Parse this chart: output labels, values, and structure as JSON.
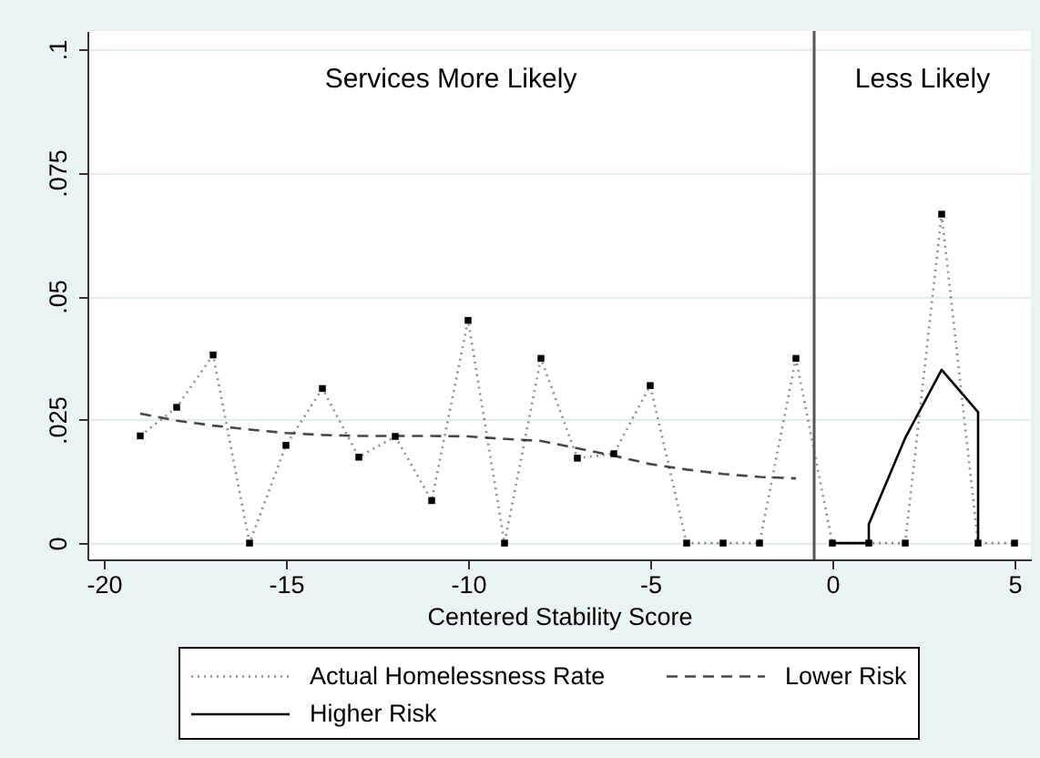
{
  "chart_data": {
    "type": "line",
    "xlabel": "Centered Stability Score",
    "annotations": [
      "Services More Likely",
      "Less Likely"
    ],
    "xlim": [
      -20.45,
      5.45
    ],
    "ylim": [
      -0.0033,
      0.1037
    ],
    "xticks": [
      -20,
      -15,
      -10,
      -5,
      0,
      5
    ],
    "yticks": [
      0,
      {
        "value": 0.025,
        "label": ".025"
      },
      {
        "value": 0.05,
        "label": ".05"
      },
      {
        "value": 0.075,
        "label": ".075"
      },
      {
        "value": 0.1,
        "label": ".1"
      }
    ],
    "grid": "y",
    "legend": "bottom",
    "ref_lines": [
      {
        "axis": "x",
        "value": -0.5,
        "color": "#555555"
      }
    ],
    "series": [
      {
        "name": "Actual Homelessness Rate",
        "color": "#000000",
        "line_style": "dotted",
        "marker": "square",
        "x": [
          -19,
          -18,
          -17,
          -16,
          -15,
          -14,
          -13,
          -12,
          -11,
          -10,
          -9,
          -8,
          -7,
          -6,
          -5,
          -4,
          -3,
          -2,
          -1,
          0,
          1,
          2,
          3,
          4,
          5
        ],
        "values": [
          0.0217,
          0.0275,
          0.0381,
          0,
          0.0198,
          0.0313,
          0.0174,
          0.0216,
          0.0086,
          0.0451,
          0,
          0.0374,
          0.0172,
          0.0181,
          0.0319,
          0,
          0,
          0,
          0.0374,
          0,
          0,
          0,
          0.0666,
          0,
          0
        ]
      },
      {
        "name": "Lower Risk",
        "color": "#000000",
        "line_style": "dashed",
        "x": [
          -19,
          -18,
          -17,
          -16,
          -15,
          -14,
          -13,
          -12,
          -11,
          -10,
          -9,
          -8,
          -7,
          -6,
          -5,
          -4,
          -3,
          -2,
          -1
        ],
        "values": [
          0.0262,
          0.0248,
          0.0238,
          0.023,
          0.0223,
          0.0219,
          0.0217,
          0.0217,
          0.0217,
          0.0216,
          0.0211,
          0.0207,
          0.0192,
          0.0177,
          0.016,
          0.0149,
          0.014,
          0.0134,
          0.0131
        ]
      },
      {
        "name": "Higher Risk",
        "color": "#000000",
        "line_style": "solid",
        "x": [
          0,
          1,
          1,
          2,
          3,
          4,
          4
        ],
        "values": [
          0,
          0,
          0.0038,
          0.0213,
          0.0351,
          0.0265,
          0
        ]
      }
    ]
  }
}
